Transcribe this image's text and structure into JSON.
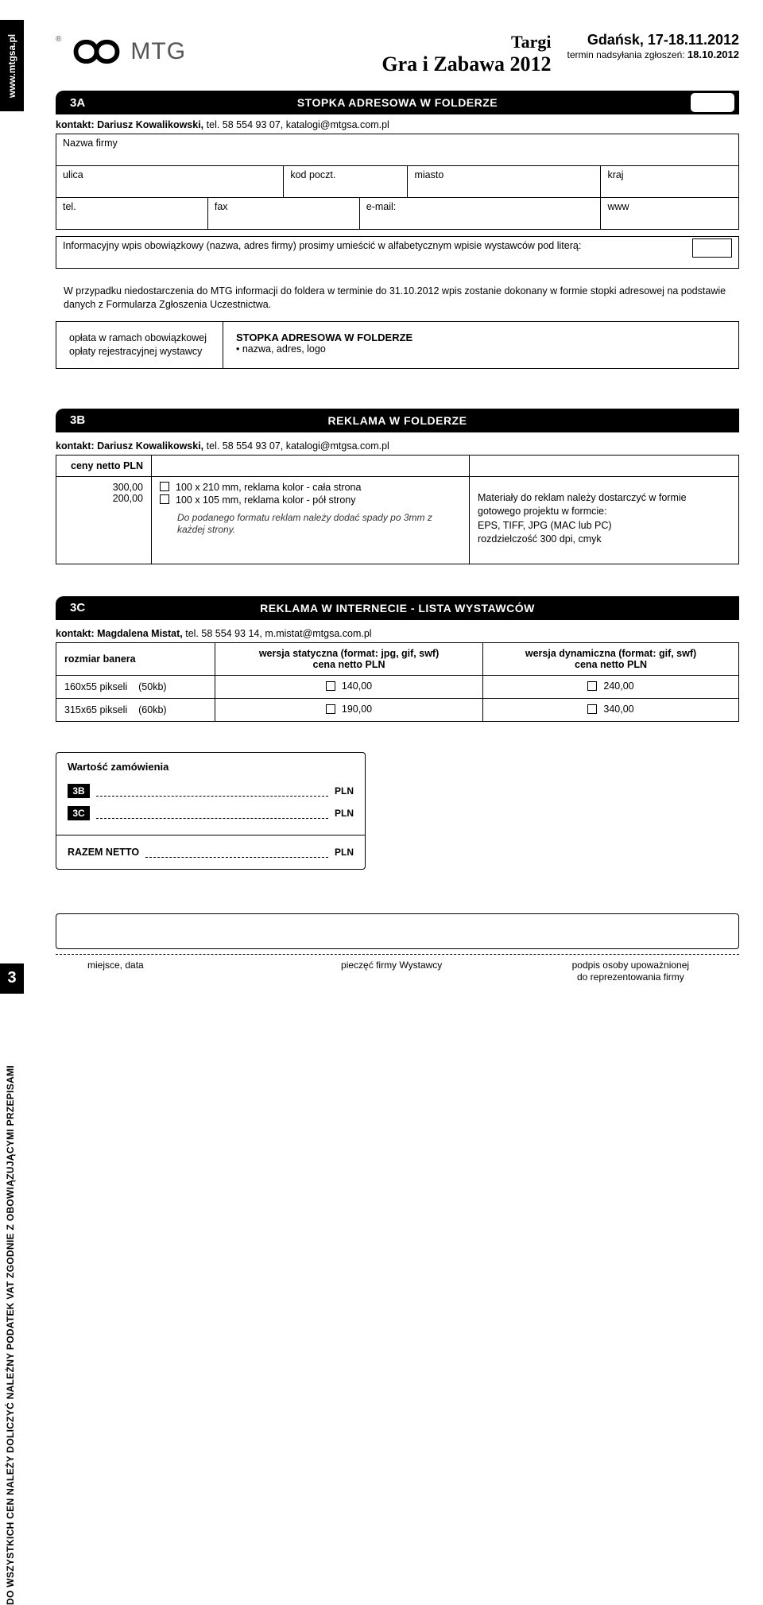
{
  "sidebar": {
    "url": "www.mtgsa.pl",
    "vat_text": "DO WSZYSTKICH CEN NALEŻY DOLICZYĆ NALEŻNY PODATEK VAT ZGODNIE Z OBOWIĄZUJĄCYMI PRZEPISAMI"
  },
  "page_number": "3",
  "header": {
    "logo_text": "MTG",
    "title_line1": "Targi",
    "title_line2": "Gra i Zabawa 2012",
    "city_date": "Gdańsk, 17-18.11.2012",
    "deadline_label": "termin nadsyłania zgłoszeń: ",
    "deadline_date": "18.10.2012"
  },
  "s3a": {
    "code": "3A",
    "title": "STOPKA ADRESOWA W FOLDERZE",
    "contact_label": "kontakt: Dariusz Kowalikowski, ",
    "contact_rest": "tel. 58 554 93 07, katalogi@mtgsa.com.pl",
    "fields": {
      "company": "Nazwa firmy",
      "street": "ulica",
      "postal": "kod poczt.",
      "city": "miasto",
      "country": "kraj",
      "tel": "tel.",
      "fax": "fax",
      "email": "e-mail:",
      "www": "www"
    },
    "info_row": "Informacyjny wpis obowiązkowy (nazwa, adres firmy) prosimy umieścić w alfabetycznym wpisie wystawców pod literą:",
    "note": "W przypadku niedostarczenia do MTG informacji do foldera w terminie do 31.10.2012 wpis zostanie dokonany w formie stopki adresowej na podstawie danych z Formularza Zgłoszenia Uczestnictwa.",
    "fee_left": "opłata w ramach obowiązkowej opłaty rejestracyjnej wystawcy",
    "fee_title": "STOPKA ADRESOWA W FOLDERZE",
    "fee_bullet": "• nazwa, adres, logo"
  },
  "s3b": {
    "code": "3B",
    "title": "REKLAMA W FOLDERZE",
    "contact_label": "kontakt: Dariusz Kowalikowski, ",
    "contact_rest": "tel. 58 554 93 07, katalogi@mtgsa.com.pl",
    "col1_head": "ceny netto PLN",
    "prices": [
      "300,00",
      "200,00"
    ],
    "options": [
      "100 x 210 mm, reklama kolor - cała strona",
      "100 x 105 mm, reklama kolor - pół strony"
    ],
    "note_italic": "Do podanego formatu reklam należy dodać spady po 3mm z każdej strony.",
    "materials": "Materiały do reklam należy dostarczyć w formie gotowego projektu w formcie:\nEPS, TIFF, JPG  (MAC lub PC)\nrozdzielczość 300 dpi, cmyk"
  },
  "s3c": {
    "code": "3C",
    "title": "REKLAMA W INTERNECIE - LISTA WYSTAWCÓW",
    "contact_label": "kontakt: Magdalena Mistat, ",
    "contact_rest": "tel. 58 554 93 14, m.mistat@mtgsa.com.pl",
    "th1": "rozmiar banera",
    "th2_l1": "wersja statyczna  (format: jpg, gif, swf)",
    "th2_l2": "cena netto PLN",
    "th3_l1": "wersja dynamiczna (format: gif, swf)",
    "th3_l2": "cena netto PLN",
    "rows": [
      {
        "size": "160x55 pikseli",
        "kb": "(50kb)",
        "static": "140,00",
        "dynamic": "240,00"
      },
      {
        "size": "315x65 pikseli",
        "kb": "(60kb)",
        "static": "190,00",
        "dynamic": "340,00"
      }
    ]
  },
  "order": {
    "title": "Wartość zamówienia",
    "tag1": "3B",
    "tag2": "3C",
    "currency": "PLN",
    "total_label": "RAZEM NETTO"
  },
  "footer": {
    "place_date": "miejsce, data",
    "stamp": "pieczęć firmy Wystawcy",
    "sig_l1": "podpis osoby upoważnionej",
    "sig_l2": "do reprezentowania firmy"
  }
}
